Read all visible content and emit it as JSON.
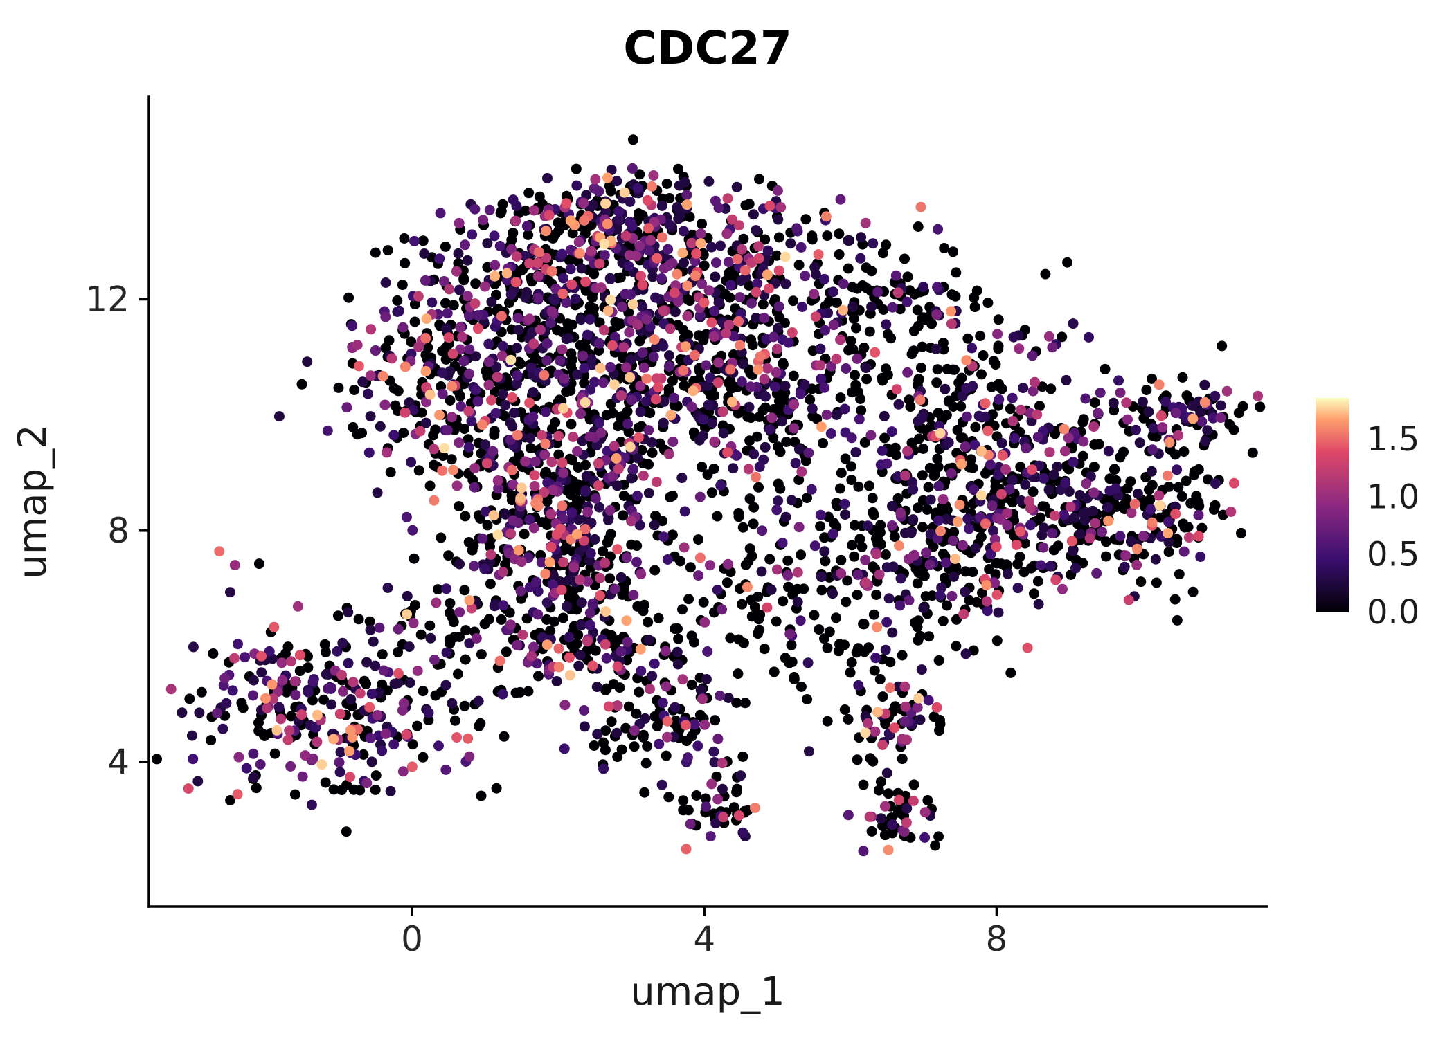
{
  "figure": {
    "background": "#ffffff"
  },
  "chart_data": {
    "type": "scatter",
    "title": "CDC27",
    "xlabel": "umap_1",
    "ylabel": "umap_2",
    "grid": false,
    "x_range": [
      -3.6,
      11.7
    ],
    "y_range": [
      1.5,
      15.5
    ],
    "x_ticks": {
      "values": [
        0,
        4,
        8
      ],
      "labels": [
        "0",
        "4",
        "8"
      ]
    },
    "y_ticks": {
      "values": [
        4,
        8,
        12
      ],
      "labels": [
        "4",
        "8",
        "12"
      ]
    },
    "legend": {
      "type": "colorbar",
      "position": "right",
      "tick_values": [
        0.0,
        0.5,
        1.0,
        1.5
      ],
      "tick_labels": [
        "0.0",
        "0.5",
        "1.0",
        "1.5"
      ],
      "value_range": [
        0,
        1.86
      ]
    },
    "colormap": {
      "name": "magma",
      "stops": [
        [
          0.0,
          "#000004"
        ],
        [
          0.25,
          "#3b0f70"
        ],
        [
          0.5,
          "#8c2981"
        ],
        [
          0.75,
          "#de4968"
        ],
        [
          0.9,
          "#fe9f6d"
        ],
        [
          1.0,
          "#fcfdbf"
        ]
      ]
    },
    "point_style": {
      "radius": 7.5,
      "color_zero": "#000004"
    },
    "seed": 7,
    "total_points": 3865,
    "expr": {
      "base": 0.25,
      "span": 1.55,
      "power": 2.4
    },
    "clip": {
      "x": [
        -3.5,
        11.65
      ],
      "y": [
        1.7,
        15.4
      ]
    },
    "clusters": [
      {
        "cx": 2.9,
        "cy": 13.4,
        "sx": 1.0,
        "sy": 0.45,
        "n": 240,
        "expr_frac": 0.55
      },
      {
        "cx": 2.2,
        "cy": 12.3,
        "sx": 1.1,
        "sy": 0.6,
        "n": 260,
        "expr_frac": 0.5
      },
      {
        "cx": 4.3,
        "cy": 12.2,
        "sx": 1.0,
        "sy": 0.7,
        "n": 220,
        "expr_frac": 0.5
      },
      {
        "cx": 0.7,
        "cy": 10.6,
        "sx": 0.85,
        "sy": 0.85,
        "n": 300,
        "expr_frac": 0.4
      },
      {
        "cx": 2.2,
        "cy": 10.8,
        "sx": 0.8,
        "sy": 0.7,
        "n": 200,
        "expr_frac": 0.4
      },
      {
        "cx": 3.9,
        "cy": 10.4,
        "sx": 0.9,
        "sy": 0.8,
        "n": 230,
        "expr_frac": 0.5
      },
      {
        "cx": 5.8,
        "cy": 10.6,
        "sx": 1.1,
        "sy": 1.0,
        "n": 150,
        "expr_frac": 0.35
      },
      {
        "cx": 6.6,
        "cy": 12.2,
        "sx": 0.7,
        "sy": 0.5,
        "n": 60,
        "expr_frac": 0.35
      },
      {
        "cx": 1.7,
        "cy": 8.1,
        "sx": 0.6,
        "sy": 0.9,
        "n": 260,
        "expr_frac": 0.5
      },
      {
        "cx": 2.6,
        "cy": 8.9,
        "sx": 0.5,
        "sy": 0.6,
        "n": 110,
        "expr_frac": 0.45
      },
      {
        "cx": 2.3,
        "cy": 6.9,
        "sx": 0.45,
        "sy": 0.55,
        "n": 90,
        "expr_frac": 0.4
      },
      {
        "cx": 8.2,
        "cy": 8.7,
        "sx": 1.2,
        "sy": 0.85,
        "n": 430,
        "expr_frac": 0.45
      },
      {
        "cx": 9.9,
        "cy": 8.2,
        "sx": 0.6,
        "sy": 0.6,
        "n": 120,
        "expr_frac": 0.4
      },
      {
        "cx": 10.7,
        "cy": 10.05,
        "sx": 0.5,
        "sy": 0.3,
        "n": 80,
        "expr_frac": 0.45
      },
      {
        "cx": 7.0,
        "cy": 7.3,
        "sx": 0.8,
        "sy": 0.6,
        "n": 130,
        "expr_frac": 0.4
      },
      {
        "cx": -1.2,
        "cy": 4.9,
        "sx": 0.95,
        "sy": 0.8,
        "n": 280,
        "expr_frac": 0.55
      },
      {
        "cx": 0.4,
        "cy": 6.2,
        "sx": 0.5,
        "sy": 0.45,
        "n": 60,
        "expr_frac": 0.4
      },
      {
        "cx": 2.4,
        "cy": 5.9,
        "sx": 0.5,
        "sy": 0.5,
        "n": 80,
        "expr_frac": 0.4
      },
      {
        "cx": 3.4,
        "cy": 4.7,
        "sx": 0.55,
        "sy": 0.6,
        "n": 100,
        "expr_frac": 0.35
      },
      {
        "cx": 4.2,
        "cy": 3.3,
        "sx": 0.3,
        "sy": 0.4,
        "n": 45,
        "expr_frac": 0.35
      },
      {
        "cx": 6.6,
        "cy": 4.6,
        "sx": 0.3,
        "sy": 0.3,
        "n": 50,
        "expr_frac": 0.4
      },
      {
        "cx": 6.7,
        "cy": 3.1,
        "sx": 0.28,
        "sy": 0.3,
        "n": 45,
        "expr_frac": 0.3
      },
      {
        "cx": 4.9,
        "cy": 6.9,
        "sx": 1.2,
        "sy": 0.8,
        "n": 110,
        "expr_frac": 0.3
      },
      {
        "cx": 5.8,
        "cy": 5.6,
        "sx": 0.9,
        "sy": 0.5,
        "n": 45,
        "expr_frac": 0.3
      },
      {
        "cx": 4.5,
        "cy": 8.9,
        "sx": 1.5,
        "sy": 1.2,
        "n": 80,
        "expr_frac": 0.35
      },
      {
        "cx": 7.6,
        "cy": 10.8,
        "sx": 0.9,
        "sy": 0.8,
        "n": 90,
        "expr_frac": 0.35
      }
    ]
  }
}
